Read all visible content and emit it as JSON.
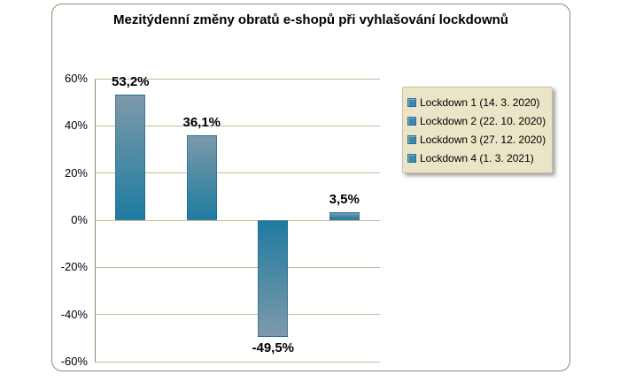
{
  "chart_data": {
    "type": "bar",
    "title": "Mezitýdenní změny obratů e-shopů při vyhlašování lockdownů",
    "categories": [
      "Lockdown 1 (14. 3. 2020)",
      "Lockdown 2 (22. 10. 2020)",
      "Lockdown 3 (27. 12. 2020)",
      "Lockdown 4 (1. 3. 2021)"
    ],
    "values": [
      53.2,
      36.1,
      -49.5,
      3.5
    ],
    "value_labels": [
      "53,2%",
      "36,1%",
      "-49,5%",
      "3,5%"
    ],
    "ylim": [
      -60,
      60
    ],
    "ytick_values": [
      60,
      40,
      20,
      0,
      -20,
      -40,
      -60
    ],
    "ytick_labels": [
      "60%",
      "40%",
      "20%",
      "0%",
      "-20%",
      "-40%",
      "-60%"
    ],
    "grid": true,
    "legend_position": "right"
  },
  "colors": {
    "bar_dark": "#1e7ba1",
    "bar_light": "#7e99aa",
    "legend_marker": "#3f87ad",
    "legend_marker_border": "#2d6f91",
    "legend_bg": "#e9e5c6",
    "gridline": "#c5bd97",
    "axis_line": "#8b8668",
    "frame_border": "#938b6d",
    "text": "#000000"
  }
}
